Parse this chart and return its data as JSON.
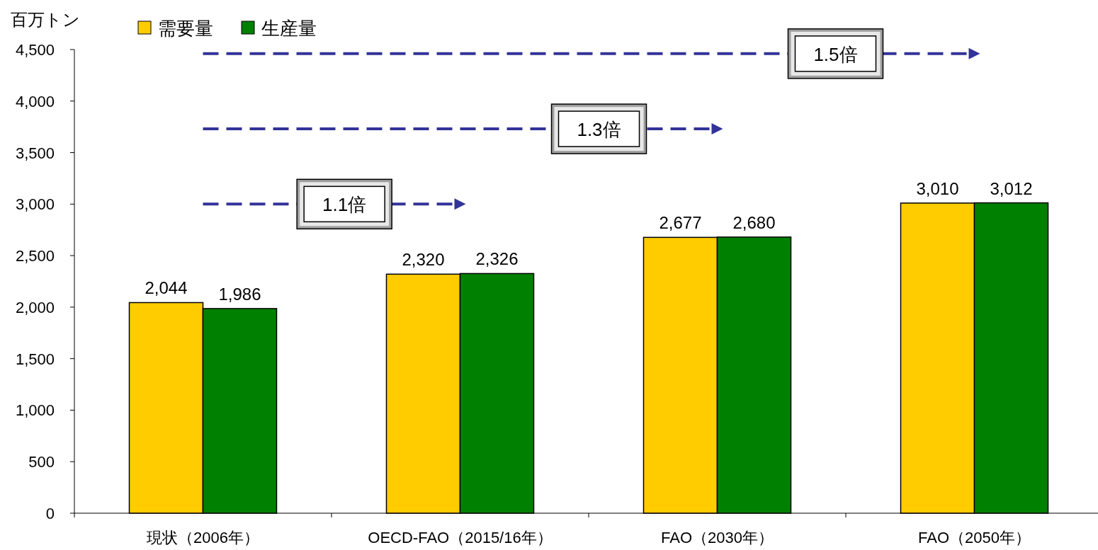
{
  "chart_data": {
    "type": "bar",
    "ylabel": "百万トン",
    "categories": [
      "現状（2006年）",
      "OECD-FAO（2015/16年）",
      "FAO（2030年）",
      "FAO（2050年）"
    ],
    "series": [
      {
        "name": "需要量",
        "color": "#ffcc00",
        "values": [
          2044,
          2320,
          2677,
          3010
        ],
        "value_labels": [
          "2,044",
          "2,320",
          "2,677",
          "3,010"
        ]
      },
      {
        "name": "生産量",
        "color": "#008000",
        "values": [
          1986,
          2326,
          2680,
          3012
        ],
        "value_labels": [
          "1,986",
          "2,326",
          "2,680",
          "3,012"
        ]
      },
      {
        "type": "line",
        "color": "#333399",
        "line_style": "dashed",
        "values": [
          3000,
          3000,
          null,
          null
        ]
      },
      {
        "type": "line",
        "color": "#333399",
        "line_style": "dashed",
        "values": [
          3730,
          3730,
          3730,
          null
        ]
      },
      {
        "type": "line",
        "color": "#333399",
        "line_style": "dashed",
        "values": [
          4460,
          4460,
          4460,
          4460
        ]
      }
    ],
    "ylim": [
      0,
      4500
    ],
    "yticks": [
      0,
      500,
      {
        "value": 1000,
        "label": "1,000"
      },
      {
        "value": 1500,
        "label": "1,500"
      },
      {
        "value": 2000,
        "label": "2,000"
      },
      {
        "value": 2500,
        "label": "2,500"
      },
      {
        "value": 3000,
        "label": "3,000"
      },
      {
        "value": 3500,
        "label": "3,500"
      },
      {
        "value": 4000,
        "label": "4,000"
      },
      {
        "value": 4500,
        "label": "4,500"
      }
    ],
    "legend": "top left",
    "annotations": [
      "1.1倍",
      "1.3倍",
      "1.5倍"
    ]
  }
}
